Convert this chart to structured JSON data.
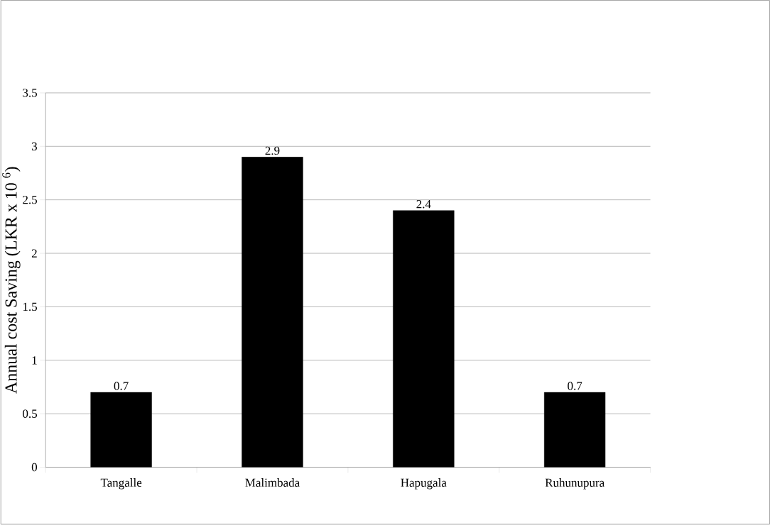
{
  "chart_data": {
    "type": "bar",
    "ylabel": "Annual cost Saving (LKR x 10 $^{6}$)",
    "categories": [
      "Tangalle",
      "Malimbada",
      "Hapugala",
      "Ruhunupura"
    ],
    "values": [
      0.7,
      2.9,
      2.4,
      0.7
    ],
    "color": "#000000",
    "ylim": [
      0,
      3.5
    ],
    "yticks": [
      0,
      0.5,
      1,
      1.5,
      2,
      2.5,
      3,
      3.5
    ],
    "grid": "y",
    "data_labels": true
  }
}
